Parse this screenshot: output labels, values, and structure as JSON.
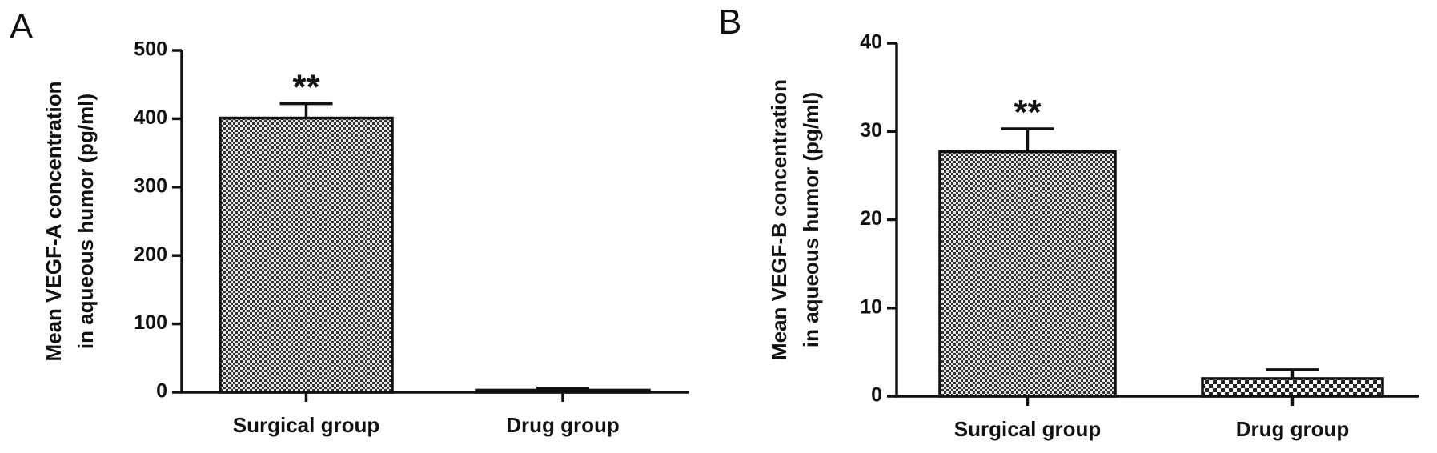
{
  "chart_data": [
    {
      "type": "bar",
      "panel": "A",
      "ylabel": [
        "Mean VEGF-A concentration",
        "in aqueous humor (pg/ml)"
      ],
      "categories": [
        "Surgical group",
        "Drug group"
      ],
      "values": [
        401,
        3
      ],
      "errors": [
        21,
        3
      ],
      "significance": [
        "**",
        null
      ],
      "color": "#555555",
      "ylim": [
        0,
        500
      ],
      "yticks": [
        0,
        100,
        200,
        300,
        400,
        500
      ]
    },
    {
      "type": "bar",
      "panel": "B",
      "ylabel": [
        "Mean VEGF-B concentration",
        "in aqueous humor (pg/ml)"
      ],
      "categories": [
        "Surgical group",
        "Drug group"
      ],
      "values": [
        27.7,
        2.0
      ],
      "errors": [
        2.6,
        1.0
      ],
      "significance": [
        "**",
        null
      ],
      "color": "#555555",
      "ylim": [
        0,
        40
      ],
      "yticks": [
        0,
        10,
        20,
        30,
        40
      ]
    }
  ]
}
